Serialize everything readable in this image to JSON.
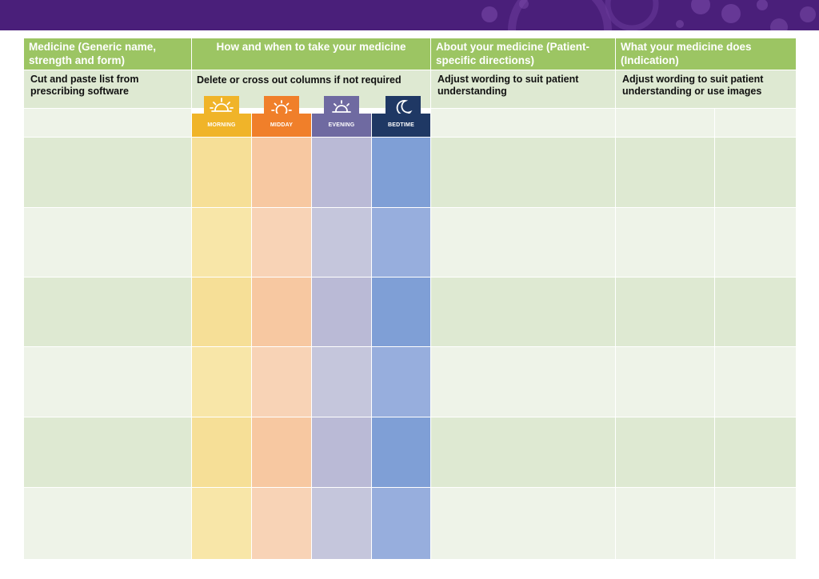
{
  "headers": {
    "medicine": "Medicine (Generic name, strength and form)",
    "how_when": "How and when to take your medicine",
    "about": "About your medicine (Patient-specific directions)",
    "what": "What your medicine does (Indication)"
  },
  "subheaders": {
    "medicine": "Cut and paste list from prescribing software",
    "how_when": "Delete or cross out columns if not required",
    "about": "Adjust wording to suit patient understanding",
    "what": "Adjust wording to suit patient understanding or use images"
  },
  "times": [
    {
      "label": "MORNING",
      "icon": "sunrise-icon",
      "color": "#f0b429"
    },
    {
      "label": "MIDDAY",
      "icon": "sun-icon",
      "color": "#f07f2a"
    },
    {
      "label": "EVENING",
      "icon": "sunset-icon",
      "color": "#6f6aa1"
    },
    {
      "label": "BEDTIME",
      "icon": "moon-icon",
      "color": "#1f3864"
    }
  ],
  "colors": {
    "header_green": "#9cc563",
    "banner_purple": "#4a1f7a"
  }
}
